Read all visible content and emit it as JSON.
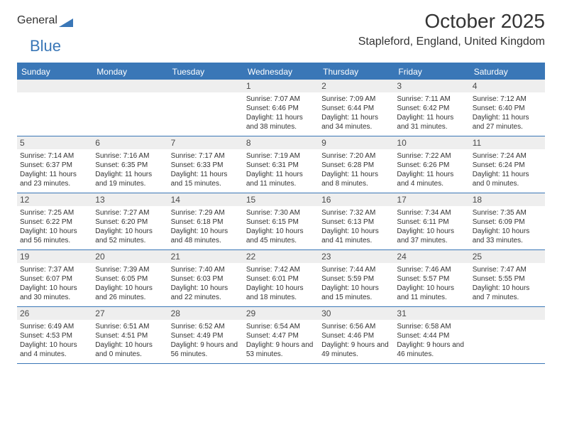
{
  "brand": {
    "part1": "General",
    "part2": "Blue"
  },
  "title": "October 2025",
  "location": "Stapleford, England, United Kingdom",
  "colors": {
    "accent": "#3a77b7",
    "dayBg": "#eeeeee",
    "text": "#333333",
    "logoGray": "#6a6a6a",
    "background": "#ffffff"
  },
  "typography": {
    "title_fontsize": 28,
    "location_fontsize": 16,
    "header_fontsize": 12,
    "daynum_fontsize": 12,
    "body_fontsize": 10
  },
  "headers": [
    "Sunday",
    "Monday",
    "Tuesday",
    "Wednesday",
    "Thursday",
    "Friday",
    "Saturday"
  ],
  "weeks": [
    [
      null,
      null,
      null,
      {
        "n": "1",
        "sr": "7:07 AM",
        "ss": "6:46 PM",
        "dl": "11 hours and 38 minutes."
      },
      {
        "n": "2",
        "sr": "7:09 AM",
        "ss": "6:44 PM",
        "dl": "11 hours and 34 minutes."
      },
      {
        "n": "3",
        "sr": "7:11 AM",
        "ss": "6:42 PM",
        "dl": "11 hours and 31 minutes."
      },
      {
        "n": "4",
        "sr": "7:12 AM",
        "ss": "6:40 PM",
        "dl": "11 hours and 27 minutes."
      }
    ],
    [
      {
        "n": "5",
        "sr": "7:14 AM",
        "ss": "6:37 PM",
        "dl": "11 hours and 23 minutes."
      },
      {
        "n": "6",
        "sr": "7:16 AM",
        "ss": "6:35 PM",
        "dl": "11 hours and 19 minutes."
      },
      {
        "n": "7",
        "sr": "7:17 AM",
        "ss": "6:33 PM",
        "dl": "11 hours and 15 minutes."
      },
      {
        "n": "8",
        "sr": "7:19 AM",
        "ss": "6:31 PM",
        "dl": "11 hours and 11 minutes."
      },
      {
        "n": "9",
        "sr": "7:20 AM",
        "ss": "6:28 PM",
        "dl": "11 hours and 8 minutes."
      },
      {
        "n": "10",
        "sr": "7:22 AM",
        "ss": "6:26 PM",
        "dl": "11 hours and 4 minutes."
      },
      {
        "n": "11",
        "sr": "7:24 AM",
        "ss": "6:24 PM",
        "dl": "11 hours and 0 minutes."
      }
    ],
    [
      {
        "n": "12",
        "sr": "7:25 AM",
        "ss": "6:22 PM",
        "dl": "10 hours and 56 minutes."
      },
      {
        "n": "13",
        "sr": "7:27 AM",
        "ss": "6:20 PM",
        "dl": "10 hours and 52 minutes."
      },
      {
        "n": "14",
        "sr": "7:29 AM",
        "ss": "6:18 PM",
        "dl": "10 hours and 48 minutes."
      },
      {
        "n": "15",
        "sr": "7:30 AM",
        "ss": "6:15 PM",
        "dl": "10 hours and 45 minutes."
      },
      {
        "n": "16",
        "sr": "7:32 AM",
        "ss": "6:13 PM",
        "dl": "10 hours and 41 minutes."
      },
      {
        "n": "17",
        "sr": "7:34 AM",
        "ss": "6:11 PM",
        "dl": "10 hours and 37 minutes."
      },
      {
        "n": "18",
        "sr": "7:35 AM",
        "ss": "6:09 PM",
        "dl": "10 hours and 33 minutes."
      }
    ],
    [
      {
        "n": "19",
        "sr": "7:37 AM",
        "ss": "6:07 PM",
        "dl": "10 hours and 30 minutes."
      },
      {
        "n": "20",
        "sr": "7:39 AM",
        "ss": "6:05 PM",
        "dl": "10 hours and 26 minutes."
      },
      {
        "n": "21",
        "sr": "7:40 AM",
        "ss": "6:03 PM",
        "dl": "10 hours and 22 minutes."
      },
      {
        "n": "22",
        "sr": "7:42 AM",
        "ss": "6:01 PM",
        "dl": "10 hours and 18 minutes."
      },
      {
        "n": "23",
        "sr": "7:44 AM",
        "ss": "5:59 PM",
        "dl": "10 hours and 15 minutes."
      },
      {
        "n": "24",
        "sr": "7:46 AM",
        "ss": "5:57 PM",
        "dl": "10 hours and 11 minutes."
      },
      {
        "n": "25",
        "sr": "7:47 AM",
        "ss": "5:55 PM",
        "dl": "10 hours and 7 minutes."
      }
    ],
    [
      {
        "n": "26",
        "sr": "6:49 AM",
        "ss": "4:53 PM",
        "dl": "10 hours and 4 minutes."
      },
      {
        "n": "27",
        "sr": "6:51 AM",
        "ss": "4:51 PM",
        "dl": "10 hours and 0 minutes."
      },
      {
        "n": "28",
        "sr": "6:52 AM",
        "ss": "4:49 PM",
        "dl": "9 hours and 56 minutes."
      },
      {
        "n": "29",
        "sr": "6:54 AM",
        "ss": "4:47 PM",
        "dl": "9 hours and 53 minutes."
      },
      {
        "n": "30",
        "sr": "6:56 AM",
        "ss": "4:46 PM",
        "dl": "9 hours and 49 minutes."
      },
      {
        "n": "31",
        "sr": "6:58 AM",
        "ss": "4:44 PM",
        "dl": "9 hours and 46 minutes."
      },
      null
    ]
  ],
  "labels": {
    "sunrise": "Sunrise:",
    "sunset": "Sunset:",
    "daylight": "Daylight:"
  }
}
